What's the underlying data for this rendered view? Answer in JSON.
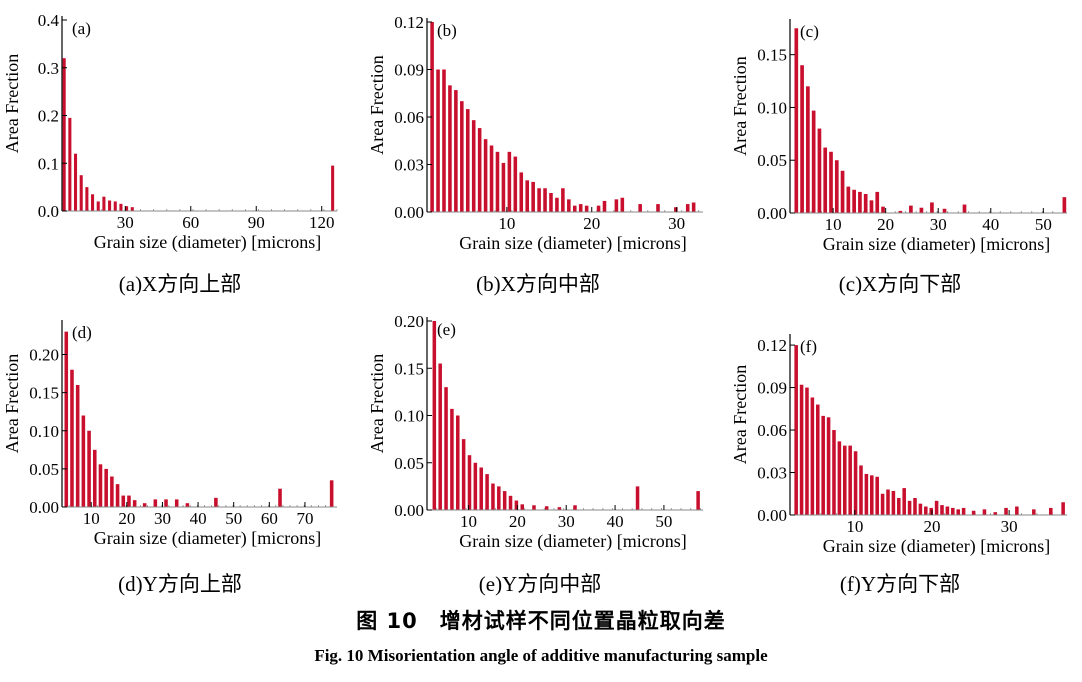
{
  "colors": {
    "bar": "#c8102e",
    "axis": "#000000",
    "tick": "#888888"
  },
  "chart_data": [
    {
      "type": "bar",
      "id": "a",
      "panel_label": "(a)",
      "caption": "(a)X方向上部",
      "xlabel": "Grain size (diameter) [microns]",
      "ylabel": "Area Frection",
      "xlim": [
        1,
        127
      ],
      "ylim": [
        0,
        0.4
      ],
      "bar_width": 1.4,
      "xticks": [
        30,
        60,
        90,
        120
      ],
      "yticks": [
        0.0,
        0.1,
        0.2,
        0.3,
        0.4
      ],
      "ytick_labels": [
        "0.0",
        "0.1",
        "0.2",
        "0.3",
        "0.4"
      ],
      "x": [
        2,
        4.6,
        7.2,
        9.8,
        12.4,
        15,
        17.6,
        20.2,
        22.8,
        25.4,
        28,
        30.6,
        33.2,
        125
      ],
      "values": [
        0.32,
        0.195,
        0.12,
        0.075,
        0.05,
        0.035,
        0.02,
        0.03,
        0.022,
        0.02,
        0.015,
        0.01,
        0.008,
        0.095
      ]
    },
    {
      "type": "bar",
      "id": "b",
      "panel_label": "(b)",
      "caption": "(b)X方向中部",
      "xlabel": "Grain size (diameter) [microns]",
      "ylabel": "Area Frection",
      "xlim": [
        0.6,
        33.1
      ],
      "ylim": [
        0,
        0.12
      ],
      "bar_width": 0.42,
      "xticks": [
        10,
        20,
        30
      ],
      "yticks": [
        0.0,
        0.03,
        0.06,
        0.09,
        0.12
      ],
      "ytick_labels": [
        "0.00",
        "0.03",
        "0.06",
        "0.09",
        "0.12"
      ],
      "x": [
        1.2,
        1.9,
        2.6,
        3.3,
        4,
        4.7,
        5.4,
        6.1,
        6.8,
        7.5,
        8.2,
        8.9,
        9.6,
        10.3,
        11,
        11.7,
        12.4,
        13.1,
        13.8,
        14.5,
        15.2,
        15.9,
        16.6,
        17.3,
        18,
        18.7,
        19.4,
        20.8,
        21.5,
        22.9,
        23.6,
        25.7,
        27.8,
        29.9,
        31.3,
        32
      ],
      "values": [
        0.12,
        0.09,
        0.09,
        0.08,
        0.077,
        0.07,
        0.065,
        0.058,
        0.053,
        0.046,
        0.042,
        0.038,
        0.031,
        0.038,
        0.035,
        0.025,
        0.02,
        0.019,
        0.015,
        0.015,
        0.012,
        0.009,
        0.015,
        0.008,
        0.004,
        0.005,
        0.004,
        0.004,
        0.007,
        0.008,
        0.009,
        0.005,
        0.005,
        0.003,
        0.005,
        0.006
      ]
    },
    {
      "type": "bar",
      "id": "c",
      "panel_label": "(c)",
      "caption": "(c)X方向下部",
      "xlabel": "Grain size (diameter) [microns]",
      "ylabel": "Area Frection",
      "xlim": [
        1.8,
        54.5
      ],
      "ylim": [
        0,
        0.18
      ],
      "bar_width": 0.7,
      "xticks": [
        10,
        20,
        30,
        40,
        50
      ],
      "yticks": [
        0.0,
        0.05,
        0.1,
        0.15
      ],
      "ytick_labels": [
        "0.00",
        "0.05",
        "0.10",
        "0.15"
      ],
      "x": [
        3,
        4.1,
        5.2,
        6.3,
        7.4,
        8.5,
        9.6,
        10.7,
        11.8,
        12.9,
        14,
        15.1,
        16.2,
        17.3,
        18.4,
        19.5,
        22.8,
        24.8,
        26.8,
        28.8,
        31.2,
        35,
        54
      ],
      "values": [
        0.175,
        0.14,
        0.12,
        0.097,
        0.08,
        0.062,
        0.058,
        0.05,
        0.04,
        0.025,
        0.022,
        0.02,
        0.018,
        0.012,
        0.02,
        0.006,
        0.002,
        0.007,
        0.005,
        0.01,
        0.004,
        0.008,
        0.015
      ]
    },
    {
      "type": "bar",
      "id": "d",
      "panel_label": "(d)",
      "caption": "(d)Y方向上部",
      "xlabel": "Grain size (diameter) [microns]",
      "ylabel": "Area Frection",
      "xlim": [
        1.8,
        79
      ],
      "ylim": [
        0,
        0.24
      ],
      "bar_width": 1.0,
      "xticks": [
        10,
        20,
        30,
        40,
        50,
        60,
        70
      ],
      "yticks": [
        0.0,
        0.05,
        0.1,
        0.15,
        0.2
      ],
      "ytick_labels": [
        "0.00",
        "0.05",
        "0.10",
        "0.15",
        "0.20"
      ],
      "x": [
        3,
        4.6,
        6.2,
        7.8,
        9.4,
        11,
        12.6,
        14.2,
        15.8,
        17.4,
        19,
        20.6,
        22.2,
        25,
        28,
        31,
        34,
        37,
        45,
        63,
        77.5
      ],
      "values": [
        0.23,
        0.18,
        0.16,
        0.12,
        0.1,
        0.075,
        0.056,
        0.05,
        0.04,
        0.03,
        0.015,
        0.015,
        0.009,
        0.005,
        0.01,
        0.01,
        0.01,
        0.005,
        0.012,
        0.024,
        0.035
      ]
    },
    {
      "type": "bar",
      "id": "e",
      "panel_label": "(e)",
      "caption": "(e)Y方向中部",
      "xlabel": "Grain size (diameter) [microns]",
      "ylabel": "Area Frection",
      "xlim": [
        1.5,
        58
      ],
      "ylim": [
        0,
        0.2
      ],
      "bar_width": 0.72,
      "xticks": [
        10,
        20,
        30,
        40,
        50
      ],
      "yticks": [
        0.0,
        0.05,
        0.1,
        0.15,
        0.2
      ],
      "ytick_labels": [
        "0.00",
        "0.05",
        "0.10",
        "0.15",
        "0.20"
      ],
      "x": [
        3,
        4.2,
        5.4,
        6.6,
        7.8,
        9,
        10.2,
        11.4,
        12.6,
        13.8,
        15,
        16.2,
        17.4,
        18.6,
        19.8,
        21,
        23.4,
        26,
        28.6,
        31.8,
        44.6,
        57
      ],
      "values": [
        0.2,
        0.155,
        0.13,
        0.107,
        0.1,
        0.075,
        0.058,
        0.05,
        0.045,
        0.038,
        0.028,
        0.025,
        0.02,
        0.015,
        0.01,
        0.006,
        0.005,
        0.004,
        0.003,
        0.005,
        0.025,
        0.02
      ]
    },
    {
      "type": "bar",
      "id": "f",
      "panel_label": "(f)",
      "caption": "(f)Y方向下部",
      "xlabel": "Grain size (diameter) [microns]",
      "ylabel": "Area Frection",
      "xlim": [
        1.6,
        37.5
      ],
      "ylim": [
        0,
        0.125
      ],
      "bar_width": 0.46,
      "xticks": [
        10,
        20,
        30
      ],
      "yticks": [
        0.0,
        0.03,
        0.06,
        0.09,
        0.12
      ],
      "ytick_labels": [
        "0.00",
        "0.03",
        "0.06",
        "0.09",
        "0.12"
      ],
      "x": [
        2.4,
        3.1,
        3.8,
        4.5,
        5.2,
        5.9,
        6.6,
        7.3,
        8,
        8.7,
        9.4,
        10.1,
        10.8,
        11.5,
        12.2,
        12.9,
        13.6,
        14.3,
        15,
        15.7,
        16.4,
        17.1,
        17.8,
        18.5,
        19.2,
        19.9,
        20.6,
        21.3,
        22,
        22.7,
        23.4,
        24.1,
        25.4,
        26.8,
        28.2,
        29.6,
        31,
        33.2,
        35.4,
        37
      ],
      "values": [
        0.12,
        0.092,
        0.09,
        0.083,
        0.078,
        0.07,
        0.069,
        0.06,
        0.052,
        0.049,
        0.049,
        0.045,
        0.035,
        0.029,
        0.028,
        0.027,
        0.015,
        0.018,
        0.017,
        0.012,
        0.019,
        0.01,
        0.012,
        0.008,
        0.006,
        0.005,
        0.01,
        0.007,
        0.006,
        0.005,
        0.004,
        0.005,
        0.003,
        0.004,
        0.002,
        0.005,
        0.006,
        0.004,
        0.005,
        0.009
      ]
    }
  ],
  "figure": {
    "title_cn": "图 10　增材试样不同位置晶粒取向差",
    "title_en": "Fig. 10    Misorientation angle of additive manufacturing sample"
  }
}
